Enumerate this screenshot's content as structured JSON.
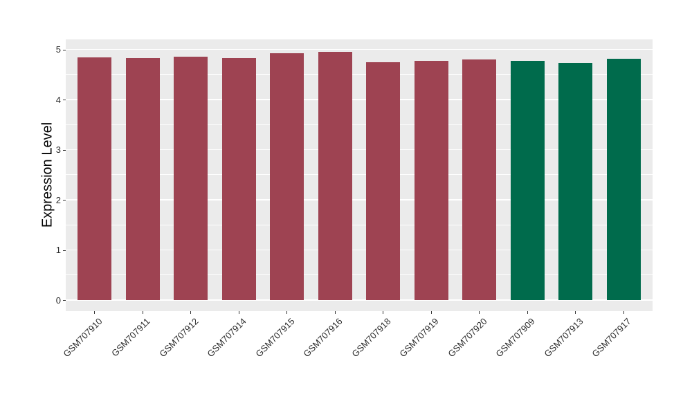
{
  "chart_data": {
    "type": "bar",
    "title": "",
    "xlabel": "",
    "ylabel": "Expression Level",
    "categories": [
      "GSM707910",
      "GSM707911",
      "GSM707912",
      "GSM707914",
      "GSM707915",
      "GSM707916",
      "GSM707918",
      "GSM707919",
      "GSM707920",
      "GSM707909",
      "GSM707913",
      "GSM707917"
    ],
    "values": [
      4.84,
      4.83,
      4.86,
      4.83,
      4.92,
      4.95,
      4.75,
      4.77,
      4.8,
      4.77,
      4.73,
      4.82
    ],
    "bar_colors": [
      "#9E4352",
      "#9E4352",
      "#9E4352",
      "#9E4352",
      "#9E4352",
      "#9E4352",
      "#9E4352",
      "#9E4352",
      "#9E4352",
      "#006B4C",
      "#006B4C",
      "#006B4C"
    ],
    "yticks": [
      0,
      1,
      2,
      3,
      4,
      5
    ],
    "ytick_labels": [
      "0",
      "1",
      "2",
      "3",
      "4",
      "5"
    ],
    "yticks_minor": [
      0.5,
      1.5,
      2.5,
      3.5,
      4.5
    ],
    "ylim": [
      -0.22,
      5.2
    ],
    "grid": true,
    "legend_position": "none"
  },
  "colors": {
    "page_background": "#FFFFFF",
    "panel_background": "#EBEBEB",
    "grid_line": "#FFFFFF",
    "bar_red": "#9E4352",
    "bar_green": "#006B4C",
    "axis_text": "#2B2B2B",
    "axis_title": "#000000",
    "tick_mark": "#333333"
  }
}
